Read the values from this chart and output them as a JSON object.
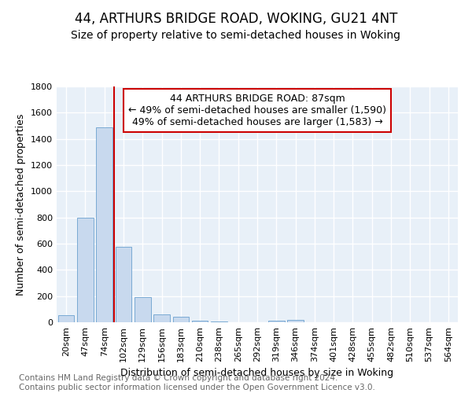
{
  "title": "44, ARTHURS BRIDGE ROAD, WOKING, GU21 4NT",
  "subtitle": "Size of property relative to semi-detached houses in Woking",
  "xlabel": "Distribution of semi-detached houses by size in Woking",
  "ylabel": "Number of semi-detached properties",
  "bin_labels": [
    "20sqm",
    "47sqm",
    "74sqm",
    "102sqm",
    "129sqm",
    "156sqm",
    "183sqm",
    "210sqm",
    "238sqm",
    "265sqm",
    "292sqm",
    "319sqm",
    "346sqm",
    "374sqm",
    "401sqm",
    "428sqm",
    "455sqm",
    "482sqm",
    "510sqm",
    "537sqm",
    "564sqm"
  ],
  "bar_values": [
    55,
    800,
    1490,
    578,
    192,
    62,
    40,
    15,
    5,
    3,
    2,
    12,
    20,
    0,
    0,
    0,
    0,
    0,
    0,
    0,
    0
  ],
  "bar_color": "#c8d9ee",
  "bar_edge_color": "#7aaad4",
  "red_line_color": "#cc0000",
  "annotation_text": "44 ARTHURS BRIDGE ROAD: 87sqm",
  "annotation_line2": "← 49% of semi-detached houses are smaller (1,590)",
  "annotation_line3": "49% of semi-detached houses are larger (1,583) →",
  "annotation_box_color": "#ffffff",
  "annotation_box_edge": "#cc0000",
  "ylim": [
    0,
    1800
  ],
  "yticks": [
    0,
    200,
    400,
    600,
    800,
    1000,
    1200,
    1400,
    1600,
    1800
  ],
  "footnote": "Contains HM Land Registry data © Crown copyright and database right 2024.\nContains public sector information licensed under the Open Government Licence v3.0.",
  "background_color": "#e8f0f8",
  "grid_color": "#ffffff",
  "title_fontsize": 12,
  "subtitle_fontsize": 10,
  "axis_label_fontsize": 9,
  "tick_fontsize": 8,
  "annotation_fontsize": 9,
  "footnote_fontsize": 7.5,
  "red_line_x": 2.5
}
